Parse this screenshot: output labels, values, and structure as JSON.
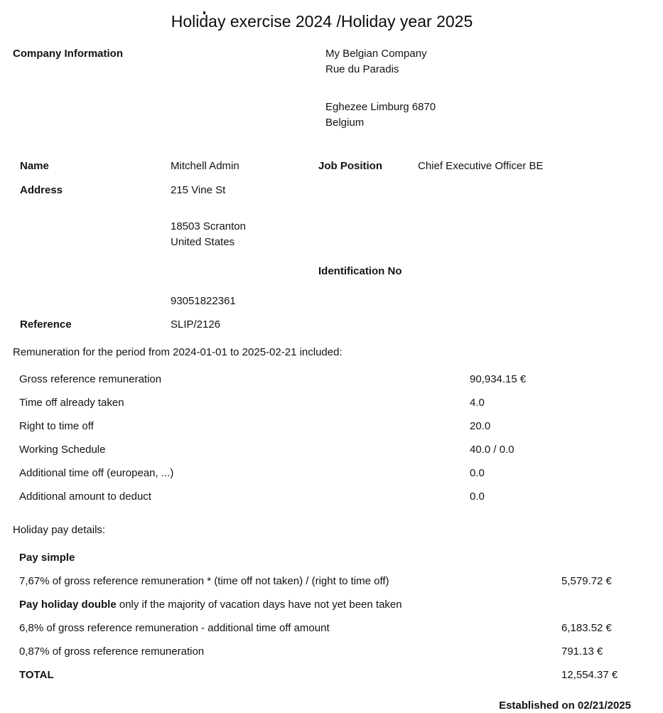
{
  "page": {
    "title": "Holiday exercise 2024 /Holiday year 2025"
  },
  "company": {
    "label": "Company Information",
    "name": "My Belgian Company",
    "street": "Rue du Paradis",
    "city_line": "Eghezee Limburg 6870",
    "country": "Belgium"
  },
  "employee": {
    "name_label": "Name",
    "name": "Mitchell Admin",
    "job_label": "Job Position",
    "job": "Chief Executive Officer BE",
    "address_label": "Address",
    "address_street": "215 Vine St",
    "address_city": "18503 Scranton",
    "address_country": "United States",
    "id_label": "Identification No",
    "id_value": "93051822361",
    "ref_label": "Reference",
    "ref_value": "SLIP/2126"
  },
  "remuneration": {
    "intro": "Remuneration for the period from 2024-01-01 to 2025-02-21 included:",
    "rows": [
      {
        "label": "Gross reference remuneration",
        "value": "90,934.15 €"
      },
      {
        "label": "Time off already taken",
        "value": "4.0"
      },
      {
        "label": "Right to time off",
        "value": "20.0"
      },
      {
        "label": "Working Schedule",
        "value": "40.0 / 0.0"
      },
      {
        "label": "Additional time off (european, ...)",
        "value": "0.0"
      },
      {
        "label": "Additional amount to deduct",
        "value": "0.0"
      }
    ]
  },
  "holiday_pay": {
    "heading": "Holiday pay details:",
    "pay_simple_heading": "Pay simple",
    "simple_row": {
      "label": "7,67% of gross reference remuneration * (time off not taken) / (right to time off)",
      "value": "5,579.72 €"
    },
    "double_heading_bold": "Pay holiday double",
    "double_heading_rest": " only if the majority of vacation days have not yet been taken",
    "double_row_1": {
      "label": "6,8% of gross reference remuneration - additional time off amount",
      "value": "6,183.52 €"
    },
    "double_row_2": {
      "label": "0,87% of gross reference remuneration",
      "value": "791.13 €"
    },
    "total_label": "TOTAL",
    "total_value": "12,554.37 €"
  },
  "footer": {
    "established": "Established on 02/21/2025"
  }
}
